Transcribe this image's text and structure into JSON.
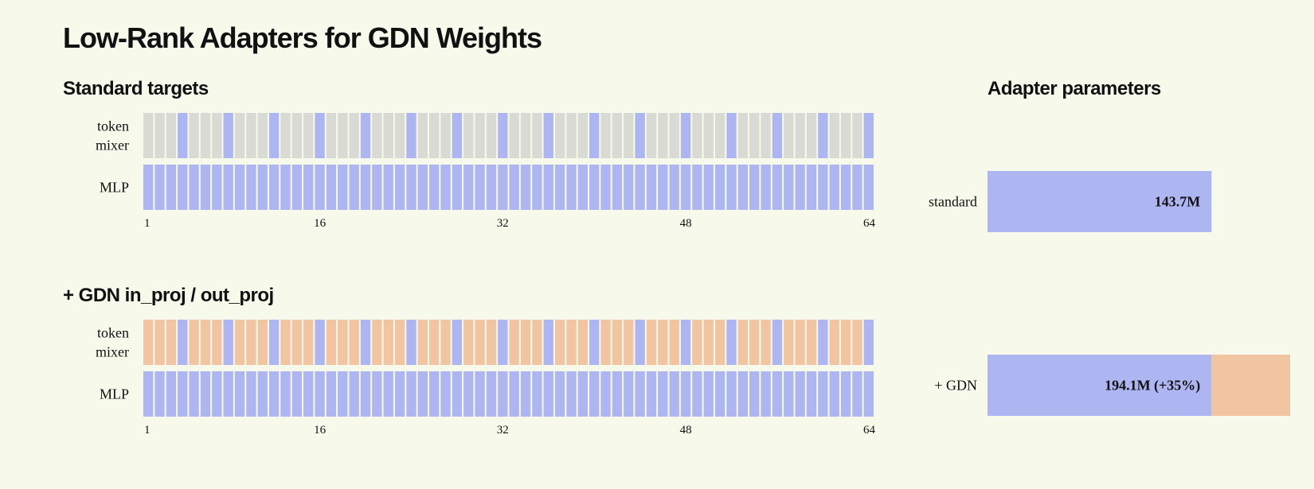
{
  "title": "Low-Rank Adapters for GDN Weights",
  "colors": {
    "adapted": "#aeb6f2",
    "frozen": "#d9dad3",
    "gdn": "#f1c5a1",
    "background": "#f7f9ea"
  },
  "chart_data": [
    {
      "type": "heatmap",
      "title": "Standard targets",
      "layers": 64,
      "row_labels": [
        [
          "token",
          "mixer"
        ],
        [
          "MLP"
        ]
      ],
      "x_ticks": [
        "1",
        "16",
        "32",
        "48",
        "64"
      ],
      "rows": [
        {
          "name": "token mixer",
          "attention_every": 4,
          "attention_fill": "adapted",
          "other_fill": "frozen"
        },
        {
          "name": "MLP",
          "all_fill": "adapted"
        }
      ]
    },
    {
      "type": "heatmap",
      "title": "+ GDN in_proj / out_proj",
      "layers": 64,
      "row_labels": [
        [
          "token",
          "mixer"
        ],
        [
          "MLP"
        ]
      ],
      "x_ticks": [
        "1",
        "16",
        "32",
        "48",
        "64"
      ],
      "rows": [
        {
          "name": "token mixer",
          "attention_every": 4,
          "attention_fill": "adapted",
          "other_fill": "gdn"
        },
        {
          "name": "MLP",
          "all_fill": "adapted"
        }
      ]
    },
    {
      "type": "bar",
      "orientation": "horizontal",
      "title": "Adapter parameters",
      "categories": [
        "standard",
        "+ GDN"
      ],
      "series": [
        {
          "values": [
            143.7,
            143.7
          ],
          "fill": "adapted"
        },
        {
          "values": [
            0,
            50.4
          ],
          "fill": "gdn"
        }
      ],
      "totals": [
        143.7,
        194.1
      ],
      "value_labels": [
        "143.7M",
        "194.1M (+35%)"
      ],
      "xlim": [
        0,
        194.1
      ]
    }
  ]
}
